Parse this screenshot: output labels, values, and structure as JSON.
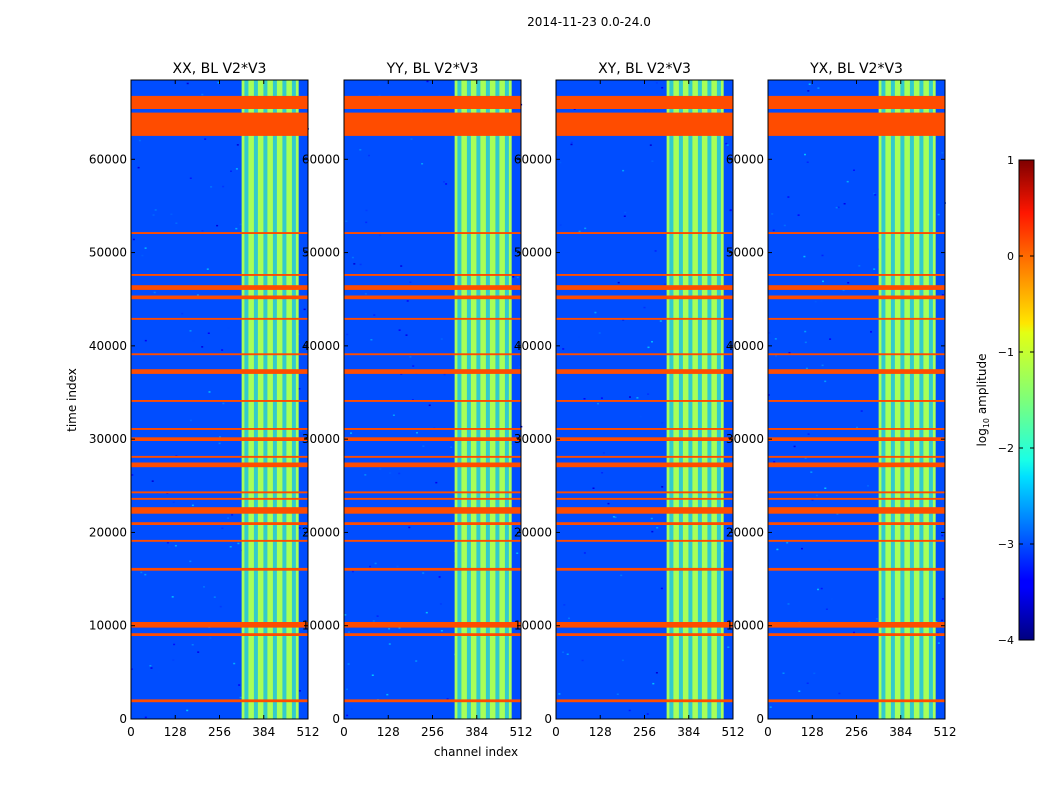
{
  "suptitle": "2014-11-23 0.0-24.0",
  "chart_data": {
    "type": "heatmap",
    "panels": [
      {
        "title": "XX, BL V2*V3"
      },
      {
        "title": "YY, BL V2*V3"
      },
      {
        "title": "XY, BL V2*V3"
      },
      {
        "title": "YX, BL V2*V3"
      }
    ],
    "xlabel": "channel index",
    "ylabel": "time index",
    "xlim": [
      0,
      512
    ],
    "ylim": [
      0,
      68500
    ],
    "xticks": [
      0,
      128,
      256,
      384,
      512
    ],
    "yticks": [
      0,
      10000,
      20000,
      30000,
      40000,
      50000,
      60000
    ],
    "colorbar": {
      "label": "log10 amplitude",
      "label_base": "log",
      "label_sub": "10",
      "label_rest": " amplitude",
      "range": [
        -4,
        1
      ],
      "ticks": [
        1,
        0,
        -1,
        -2,
        -3,
        -4
      ],
      "tick_labels": [
        "1",
        "0",
        "−1",
        "−2",
        "−3",
        "−4"
      ],
      "colormap": "jet"
    },
    "background_log_amplitude": -3,
    "bright_channel_band": [
      320,
      485
    ],
    "bright_band_log_amplitude": -1.3,
    "flagged_log_amplitude": 0,
    "flagged_time_blocks": [
      [
        62500,
        65000
      ],
      [
        65400,
        66800
      ],
      [
        37000,
        37500
      ],
      [
        45000,
        45400
      ],
      [
        46000,
        46500
      ],
      [
        27000,
        27500
      ],
      [
        29800,
        30200
      ],
      [
        22000,
        22700
      ],
      [
        20800,
        21100
      ],
      [
        15900,
        16200
      ],
      [
        9800,
        10400
      ],
      [
        8900,
        9200
      ],
      [
        1800,
        2100
      ],
      [
        19000,
        19200
      ],
      [
        23500,
        23700
      ],
      [
        24200,
        24400
      ],
      [
        28000,
        28200
      ],
      [
        31000,
        31200
      ],
      [
        34000,
        34200
      ],
      [
        39000,
        39200
      ],
      [
        42800,
        43000
      ],
      [
        52000,
        52200
      ],
      [
        47500,
        47700
      ]
    ]
  }
}
